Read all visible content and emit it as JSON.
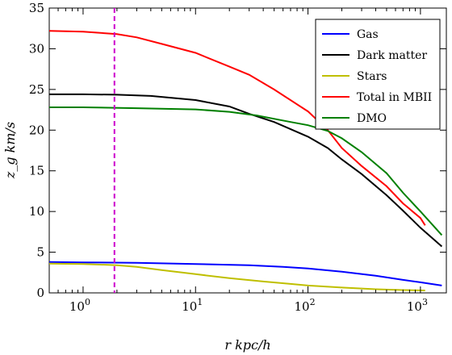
{
  "chart_data": {
    "type": "line",
    "xlabel": "r  kpc/h",
    "ylabel": "z_g  km/s",
    "xscale": "log",
    "xlim": [
      0.5,
      1700
    ],
    "ylim": [
      0,
      35
    ],
    "x_ticks": [
      1,
      10,
      100,
      1000
    ],
    "x_tick_labels": [
      "10^0",
      "10^1",
      "10^2",
      "10^3"
    ],
    "y_ticks": [
      0,
      5,
      10,
      15,
      20,
      25,
      30,
      35
    ],
    "y_tick_labels": [
      "0",
      "5",
      "10",
      "15",
      "20",
      "25",
      "30",
      "35"
    ],
    "legend_position": "top-right",
    "vline": {
      "x": 1.9,
      "color": "#cc00cc",
      "style": "dashed"
    },
    "series": [
      {
        "name": "Gas",
        "color": "#0000ff",
        "points": [
          [
            0.5,
            3.8
          ],
          [
            1.0,
            3.75
          ],
          [
            3.0,
            3.7
          ],
          [
            10,
            3.55
          ],
          [
            30,
            3.4
          ],
          [
            60,
            3.2
          ],
          [
            100,
            3.0
          ],
          [
            200,
            2.6
          ],
          [
            400,
            2.1
          ],
          [
            700,
            1.6
          ],
          [
            1000,
            1.3
          ],
          [
            1550,
            0.9
          ]
        ]
      },
      {
        "name": "Dark matter",
        "color": "#000000",
        "points": [
          [
            0.5,
            24.4
          ],
          [
            1.0,
            24.4
          ],
          [
            2.0,
            24.35
          ],
          [
            4.0,
            24.2
          ],
          [
            10,
            23.7
          ],
          [
            20,
            22.9
          ],
          [
            30,
            22.0
          ],
          [
            50,
            21.0
          ],
          [
            100,
            19.2
          ],
          [
            150,
            17.8
          ],
          [
            200,
            16.4
          ],
          [
            300,
            14.6
          ],
          [
            500,
            12.0
          ],
          [
            700,
            10.1
          ],
          [
            1000,
            8.0
          ],
          [
            1550,
            5.7
          ]
        ]
      },
      {
        "name": "Stars",
        "color": "#bfbf00",
        "points": [
          [
            0.5,
            3.6
          ],
          [
            1.0,
            3.55
          ],
          [
            2.0,
            3.4
          ],
          [
            3.0,
            3.2
          ],
          [
            5.0,
            2.8
          ],
          [
            10,
            2.3
          ],
          [
            20,
            1.8
          ],
          [
            40,
            1.4
          ],
          [
            70,
            1.1
          ],
          [
            100,
            0.9
          ],
          [
            200,
            0.65
          ],
          [
            400,
            0.45
          ],
          [
            700,
            0.35
          ],
          [
            1100,
            0.3
          ]
        ]
      },
      {
        "name": "Total in MBII",
        "color": "#ff0000",
        "points": [
          [
            0.5,
            32.2
          ],
          [
            1.0,
            32.1
          ],
          [
            2.0,
            31.8
          ],
          [
            3.0,
            31.4
          ],
          [
            5.0,
            30.6
          ],
          [
            10,
            29.5
          ],
          [
            20,
            27.8
          ],
          [
            30,
            26.8
          ],
          [
            50,
            25.0
          ],
          [
            100,
            22.3
          ],
          [
            150,
            20.0
          ],
          [
            200,
            17.8
          ],
          [
            300,
            15.6
          ],
          [
            500,
            13.1
          ],
          [
            700,
            11.0
          ],
          [
            1000,
            9.2
          ],
          [
            1100,
            8.3
          ]
        ]
      },
      {
        "name": "DMO",
        "color": "#008000",
        "points": [
          [
            0.5,
            22.8
          ],
          [
            1.0,
            22.8
          ],
          [
            3.0,
            22.7
          ],
          [
            10,
            22.55
          ],
          [
            20,
            22.25
          ],
          [
            35,
            21.8
          ],
          [
            70,
            21.0
          ],
          [
            100,
            20.6
          ],
          [
            150,
            19.9
          ],
          [
            200,
            19.0
          ],
          [
            300,
            17.3
          ],
          [
            500,
            14.7
          ],
          [
            700,
            12.3
          ],
          [
            1000,
            10.0
          ],
          [
            1550,
            7.1
          ]
        ]
      }
    ]
  }
}
